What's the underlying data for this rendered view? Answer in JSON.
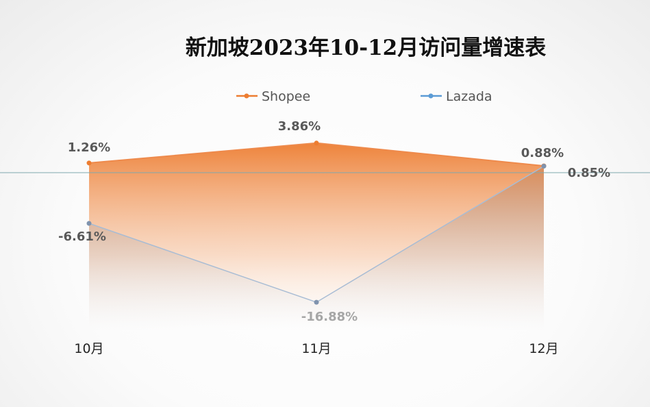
{
  "chart_data": {
    "type": "area",
    "title": "新加坡2023年10-12月访问量增速表",
    "categories": [
      "10月",
      "11月",
      "12月"
    ],
    "series": [
      {
        "name": "Shopee",
        "values": [
          1.26,
          3.86,
          0.88
        ],
        "labels": [
          "1.26%",
          "3.86%",
          "0.88%"
        ],
        "color": "#ED7D31"
      },
      {
        "name": "Lazada",
        "values": [
          -6.61,
          -16.88,
          0.85
        ],
        "labels": [
          "-6.61%",
          "-16.88%",
          "0.85%"
        ],
        "color": "#5B9BD5"
      }
    ],
    "ylim": [
      -20,
      5
    ],
    "grid": false,
    "legend": "top"
  }
}
